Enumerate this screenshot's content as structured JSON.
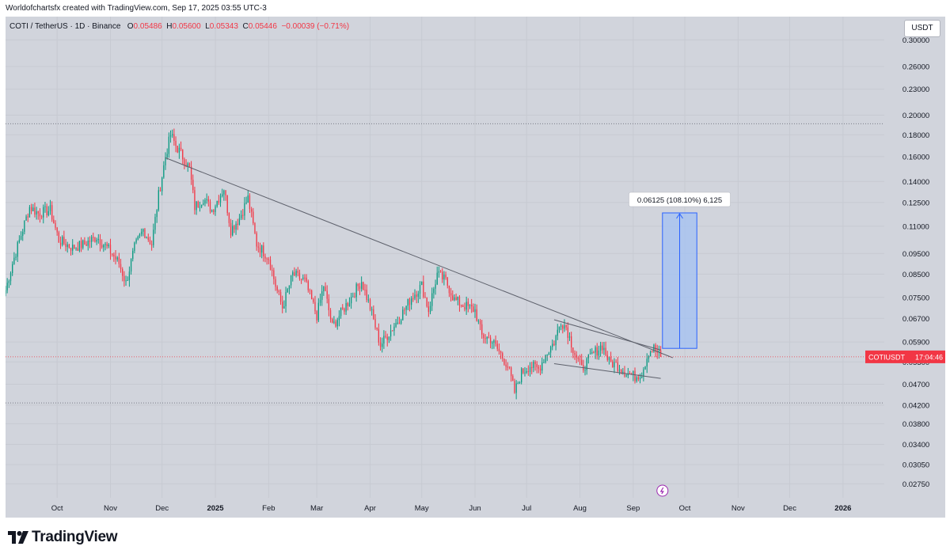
{
  "header": {
    "credit": "Worldofchartsfx created with TradingView.com, Sep 17, 2025 03:55 UTC-3"
  },
  "legend": {
    "symbol": "COTI / TetherUS · 1D · Binance",
    "open_label": "O",
    "open": "0.05486",
    "high_label": "H",
    "high": "0.05600",
    "low_label": "L",
    "low": "0.05343",
    "close_label": "C",
    "close": "0.05446",
    "change": "−0.00039 (−0.71%)"
  },
  "currency": "USDT",
  "brand": "TradingView",
  "colors": {
    "background": "#d1d4dc",
    "up": "#089981",
    "down": "#f23645",
    "trendline": "#5d606b",
    "measure_fill": "#a3c1f3",
    "measure_line": "#2962ff"
  },
  "chart_data": {
    "type": "candlestick",
    "symbol": "COTIUSDT",
    "timeframe": "1D",
    "scale": "log",
    "x_range": [
      "2024-09-01",
      "2026-01-25"
    ],
    "y_range": [
      0.0255,
      0.34
    ],
    "price_axis_ticks": [
      "0.30000",
      "0.26000",
      "0.23000",
      "0.20000",
      "0.18000",
      "0.16000",
      "0.14000",
      "0.12500",
      "0.11000",
      "0.09500",
      "0.08500",
      "0.07500",
      "0.06700",
      "0.05900",
      "0.05300",
      "0.04700",
      "0.04200",
      "0.03800",
      "0.03400",
      "0.03050",
      "0.02750"
    ],
    "time_axis": [
      {
        "label": "Oct",
        "date": "2024-10-01"
      },
      {
        "label": "Nov",
        "date": "2024-11-01"
      },
      {
        "label": "Dec",
        "date": "2024-12-01"
      },
      {
        "label": "2025",
        "date": "2025-01-01"
      },
      {
        "label": "Feb",
        "date": "2025-02-01"
      },
      {
        "label": "Mar",
        "date": "2025-03-01"
      },
      {
        "label": "Apr",
        "date": "2025-04-01"
      },
      {
        "label": "May",
        "date": "2025-05-01"
      },
      {
        "label": "Jun",
        "date": "2025-06-01"
      },
      {
        "label": "Jul",
        "date": "2025-07-01"
      },
      {
        "label": "Aug",
        "date": "2025-08-01"
      },
      {
        "label": "Sep",
        "date": "2025-09-01"
      },
      {
        "label": "Oct",
        "date": "2025-10-01"
      },
      {
        "label": "Nov",
        "date": "2025-11-01"
      },
      {
        "label": "Dec",
        "date": "2025-12-01"
      },
      {
        "label": "2026",
        "date": "2026-01-01"
      }
    ],
    "price_path": [
      [
        "2024-09-01",
        0.078
      ],
      [
        "2024-09-05",
        0.09
      ],
      [
        "2024-09-10",
        0.105
      ],
      [
        "2024-09-15",
        0.122
      ],
      [
        "2024-09-20",
        0.118
      ],
      [
        "2024-09-27",
        0.12
      ],
      [
        "2024-10-02",
        0.102
      ],
      [
        "2024-10-10",
        0.098
      ],
      [
        "2024-10-17",
        0.1
      ],
      [
        "2024-10-24",
        0.104
      ],
      [
        "2024-11-01",
        0.096
      ],
      [
        "2024-11-06",
        0.09
      ],
      [
        "2024-11-10",
        0.081
      ],
      [
        "2024-11-15",
        0.098
      ],
      [
        "2024-11-20",
        0.108
      ],
      [
        "2024-11-25",
        0.1
      ],
      [
        "2024-11-29",
        0.13
      ],
      [
        "2024-12-03",
        0.16
      ],
      [
        "2024-12-06",
        0.18
      ],
      [
        "2024-12-09",
        0.17
      ],
      [
        "2024-12-13",
        0.16
      ],
      [
        "2024-12-17",
        0.15
      ],
      [
        "2024-12-20",
        0.122
      ],
      [
        "2024-12-25",
        0.128
      ],
      [
        "2024-12-30",
        0.12
      ],
      [
        "2025-01-06",
        0.135
      ],
      [
        "2025-01-10",
        0.108
      ],
      [
        "2025-01-15",
        0.115
      ],
      [
        "2025-01-20",
        0.128
      ],
      [
        "2025-01-25",
        0.1
      ],
      [
        "2025-02-01",
        0.093
      ],
      [
        "2025-02-05",
        0.08
      ],
      [
        "2025-02-09",
        0.071
      ],
      [
        "2025-02-15",
        0.085
      ],
      [
        "2025-02-22",
        0.082
      ],
      [
        "2025-03-01",
        0.068
      ],
      [
        "2025-03-05",
        0.08
      ],
      [
        "2025-03-10",
        0.064
      ],
      [
        "2025-03-15",
        0.069
      ],
      [
        "2025-03-20",
        0.074
      ],
      [
        "2025-03-27",
        0.082
      ],
      [
        "2025-04-01",
        0.071
      ],
      [
        "2025-04-07",
        0.058
      ],
      [
        "2025-04-12",
        0.062
      ],
      [
        "2025-04-18",
        0.067
      ],
      [
        "2025-04-25",
        0.075
      ],
      [
        "2025-05-01",
        0.08
      ],
      [
        "2025-05-05",
        0.07
      ],
      [
        "2025-05-10",
        0.085
      ],
      [
        "2025-05-15",
        0.082
      ],
      [
        "2025-05-20",
        0.074
      ],
      [
        "2025-05-25",
        0.072
      ],
      [
        "2025-06-01",
        0.07
      ],
      [
        "2025-06-05",
        0.061
      ],
      [
        "2025-06-10",
        0.06
      ],
      [
        "2025-06-15",
        0.056
      ],
      [
        "2025-06-20",
        0.052
      ],
      [
        "2025-06-24",
        0.045
      ],
      [
        "2025-06-28",
        0.05
      ],
      [
        "2025-07-03",
        0.052
      ],
      [
        "2025-07-08",
        0.051
      ],
      [
        "2025-07-12",
        0.055
      ],
      [
        "2025-07-17",
        0.059
      ],
      [
        "2025-07-21",
        0.066
      ],
      [
        "2025-07-24",
        0.064
      ],
      [
        "2025-07-28",
        0.057
      ],
      [
        "2025-08-02",
        0.051
      ],
      [
        "2025-08-08",
        0.055
      ],
      [
        "2025-08-14",
        0.058
      ],
      [
        "2025-08-18",
        0.053
      ],
      [
        "2025-08-23",
        0.052
      ],
      [
        "2025-08-28",
        0.05
      ],
      [
        "2025-09-02",
        0.049
      ],
      [
        "2025-09-06",
        0.05
      ],
      [
        "2025-09-10",
        0.056
      ],
      [
        "2025-09-13",
        0.057
      ],
      [
        "2025-09-17",
        0.05446
      ]
    ],
    "horizontal_levels": [
      0.191,
      0.0425
    ],
    "trendlines": [
      {
        "name": "descending resistance",
        "from": [
          "2024-12-03",
          0.159
        ],
        "to": [
          "2025-09-24",
          0.0542
        ]
      },
      {
        "name": "wedge upper",
        "from": [
          "2025-07-17",
          0.0665
        ],
        "to": [
          "2025-09-17",
          0.0565
        ]
      },
      {
        "name": "wedge lower",
        "from": [
          "2025-07-17",
          0.0525
        ],
        "to": [
          "2025-09-17",
          0.0485
        ]
      }
    ],
    "measure": {
      "from_price": 0.057,
      "to_price": 0.1182,
      "start_date": "2025-09-18",
      "end_date": "2025-10-08",
      "label": "0.06125 (108.10%) 6,125"
    },
    "current_price": {
      "symbol": "COTIUSDT",
      "price": 0.05446,
      "countdown": "17:04:46"
    }
  }
}
